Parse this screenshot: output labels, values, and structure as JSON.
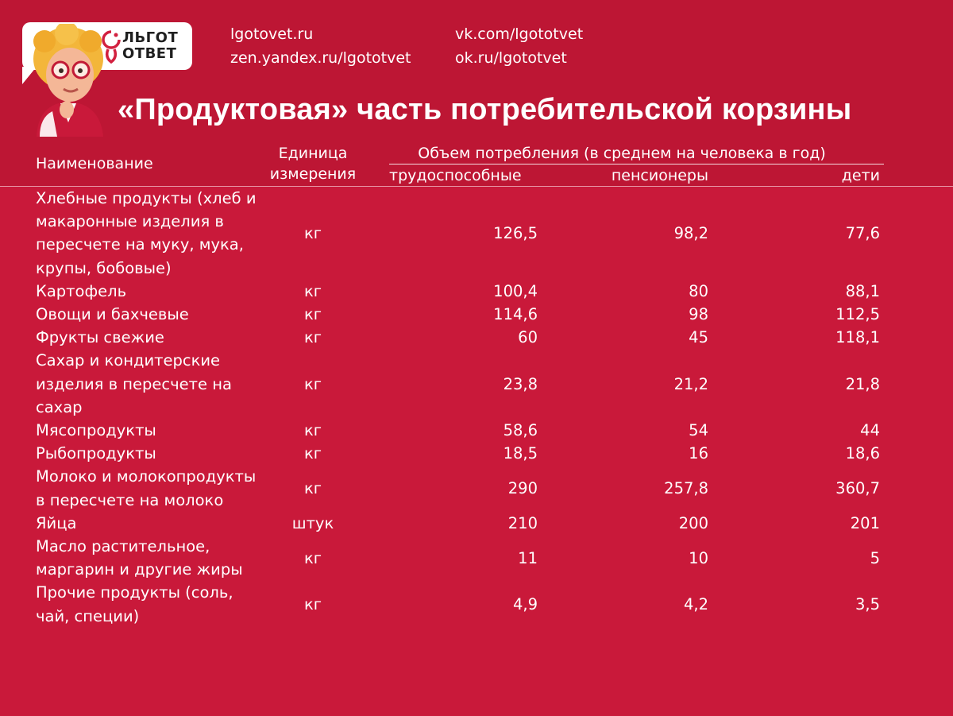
{
  "logo": {
    "line1": "ЛЬГОТ",
    "line2": "ОТВЕТ"
  },
  "links": {
    "site": "lgotovet.ru",
    "zen": "zen.yandex.ru/lgototvet",
    "vk": "vk.com/lgototvet",
    "ok": "ok.ru/lgototvet"
  },
  "title": "«Продуктовая» часть потребительской корзины",
  "table": {
    "headers": {
      "name": "Наименование",
      "unit": "Единица измерения",
      "volume": "Объем потребления (в среднем на человека в год)",
      "col1": "трудоспособные",
      "col2": "пенсионеры",
      "col3": "дети"
    },
    "rows": [
      {
        "name": "Хлебные продукты (хлеб и макаронные изделия в пересчете на муку, мука, крупы, бобовые)",
        "unit": "кг",
        "v1": "126,5",
        "v2": "98,2",
        "v3": "77,6"
      },
      {
        "name": "Картофель",
        "unit": "кг",
        "v1": "100,4",
        "v2": "80",
        "v3": "88,1"
      },
      {
        "name": "Овощи и бахчевые",
        "unit": "кг",
        "v1": "114,6",
        "v2": "98",
        "v3": "112,5"
      },
      {
        "name": "Фрукты свежие",
        "unit": "кг",
        "v1": "60",
        "v2": "45",
        "v3": "118,1"
      },
      {
        "name": "Сахар и кондитерские изделия в пересчете на сахар",
        "unit": "кг",
        "v1": "23,8",
        "v2": "21,2",
        "v3": "21,8"
      },
      {
        "name": "Мясопродукты",
        "unit": "кг",
        "v1": "58,6",
        "v2": "54",
        "v3": "44"
      },
      {
        "name": "Рыбопродукты",
        "unit": "кг",
        "v1": "18,5",
        "v2": "16",
        "v3": "18,6"
      },
      {
        "name": "Молоко и молокопродукты в пересчете на молоко",
        "unit": "кг",
        "v1": "290",
        "v2": "257,8",
        "v3": "360,7"
      },
      {
        "name": "Яйца",
        "unit": "штук",
        "v1": "210",
        "v2": "200",
        "v3": "201"
      },
      {
        "name": "Масло растительное, маргарин и другие жиры",
        "unit": "кг",
        "v1": "11",
        "v2": "10",
        "v3": "5"
      },
      {
        "name": "Прочие продукты (соль, чай, специи)",
        "unit": "кг",
        "v1": "4,9",
        "v2": "4,2",
        "v3": "3,5"
      }
    ]
  }
}
